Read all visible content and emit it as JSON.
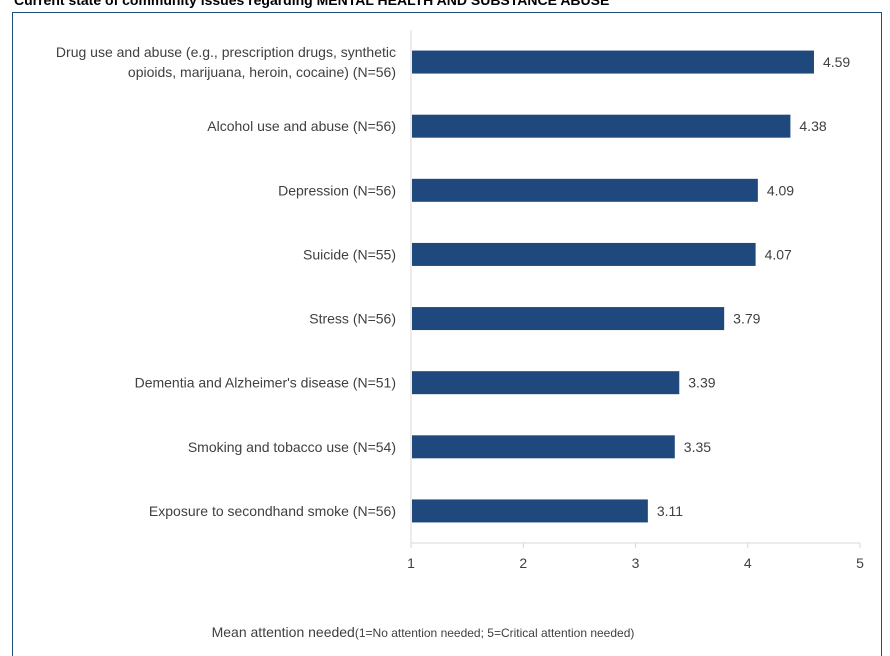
{
  "chart_data": {
    "type": "bar",
    "orientation": "horizontal",
    "title": "Current state of community issues regarding MENTAL HEALTH AND SUBSTANCE ABUSE",
    "categories": [
      [
        "Drug use and abuse (e.g., prescription drugs, synthetic",
        "opioids, marijuana, heroin, cocaine) (N=56)"
      ],
      [
        "Alcohol use and abuse (N=56)"
      ],
      [
        "Depression (N=56)"
      ],
      [
        "Suicide (N=55)"
      ],
      [
        "Stress (N=56)"
      ],
      [
        "Dementia and Alzheimer's disease (N=51)"
      ],
      [
        "Smoking and tobacco use (N=54)"
      ],
      [
        "Exposure to secondhand smoke (N=56)"
      ]
    ],
    "values": [
      4.59,
      4.38,
      4.09,
      4.07,
      3.79,
      3.39,
      3.35,
      3.11
    ],
    "value_labels": [
      "4.59",
      "4.38",
      "4.09",
      "4.07",
      "3.79",
      "3.39",
      "3.35",
      "3.11"
    ],
    "xlim": [
      1,
      5
    ],
    "xticks": [
      1,
      2,
      3,
      4,
      5
    ],
    "xtick_labels": [
      "1",
      "2",
      "3",
      "4",
      "5"
    ],
    "xlabel": "Mean attention needed",
    "xlabel_sub": "(1=No attention needed; 5=Critical attention needed)",
    "bar_color": "#1f497d",
    "axis_color": "#d9d9d9",
    "grid": false,
    "legend": "none"
  }
}
